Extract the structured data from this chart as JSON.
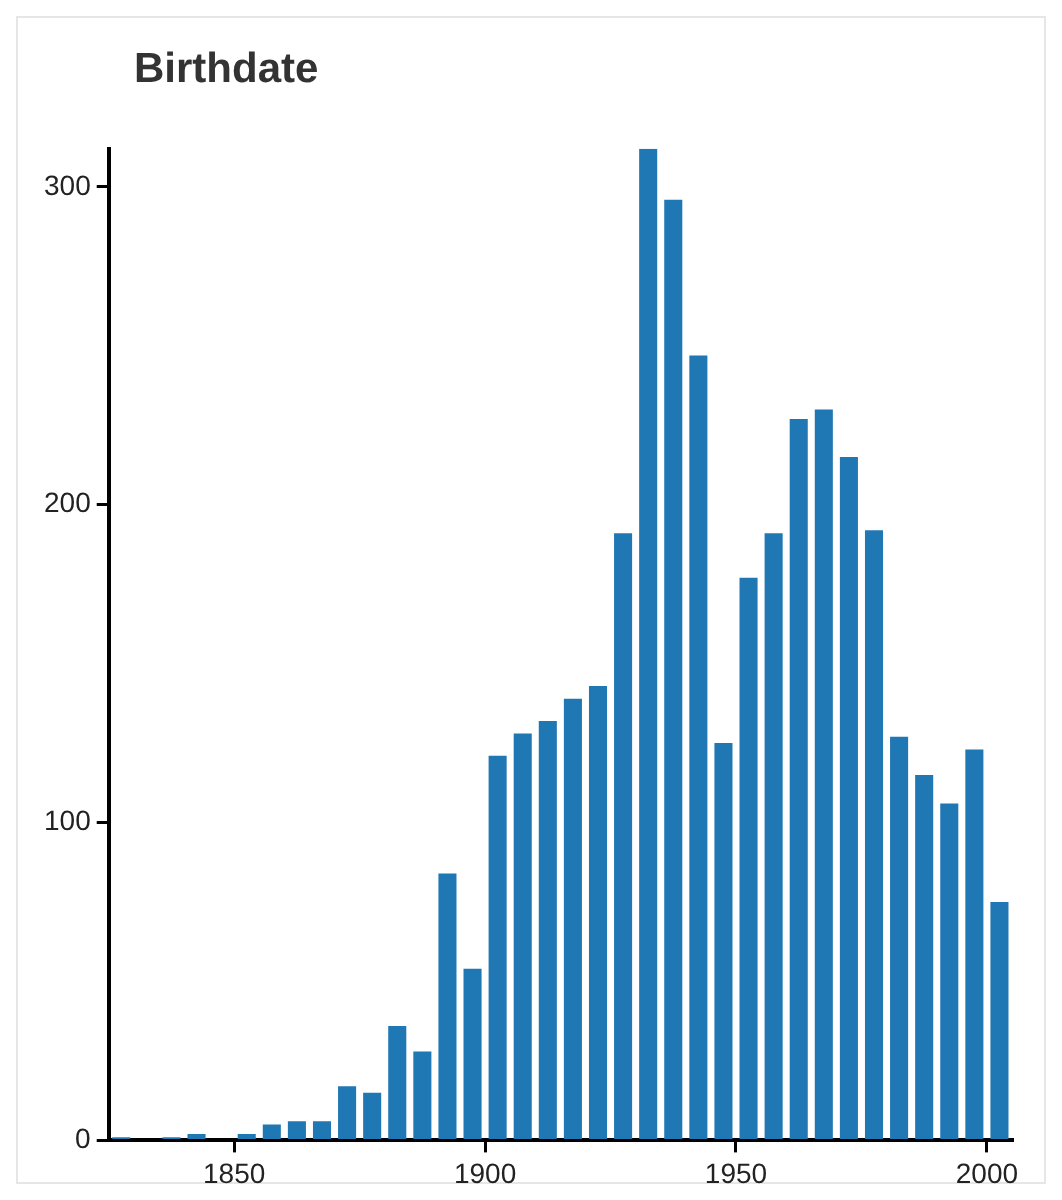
{
  "chart_data": {
    "type": "histogram",
    "title": "Birthdate",
    "bins": [
      1825,
      1830,
      1835,
      1840,
      1845,
      1850,
      1855,
      1860,
      1865,
      1870,
      1875,
      1880,
      1885,
      1890,
      1895,
      1900,
      1905,
      1910,
      1915,
      1920,
      1925,
      1930,
      1935,
      1940,
      1945,
      1950,
      1955,
      1960,
      1965,
      1970,
      1975,
      1980,
      1985,
      1990,
      1995,
      2000,
      2005
    ],
    "values": [
      1,
      0,
      1,
      2,
      0,
      2,
      5,
      6,
      6,
      17,
      15,
      36,
      28,
      84,
      54,
      121,
      128,
      132,
      139,
      143,
      191,
      312,
      296,
      247,
      125,
      177,
      191,
      227,
      230,
      215,
      192,
      127,
      115,
      106,
      123,
      75
    ],
    "color": "#1f77b4",
    "xlim": [
      1825,
      2005
    ],
    "xticks": [
      1850,
      1900,
      1950,
      2000
    ],
    "ylim": [
      0,
      312
    ],
    "yticks": [
      0,
      100,
      200,
      300
    ],
    "grid": false,
    "legend": false
  }
}
